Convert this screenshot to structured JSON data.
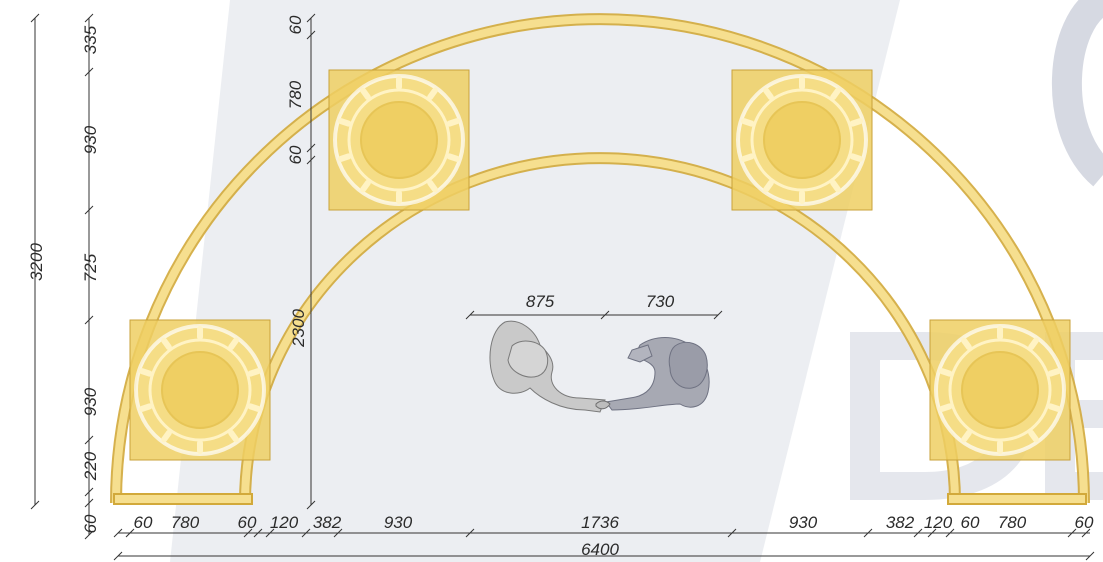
{
  "diagram": {
    "colors": {
      "arch_fill": "#f6df8f",
      "arch_stroke": "#d2a93a",
      "planter_fill": "#efcf63",
      "planter_stroke": "#c9a23a",
      "dim_line": "#333333",
      "watermark": "#8a93ad",
      "figure_light": "#c9c9c9",
      "figure_dark": "#a7a9b3"
    },
    "dimensions": {
      "left_vertical": {
        "total": "3200",
        "segments": [
          "335",
          "930",
          "725",
          "930",
          "220",
          "60"
        ]
      },
      "center_vertical": {
        "segments": [
          "60",
          "780",
          "60"
        ],
        "height": "2300"
      },
      "bottom_row": [
        "60",
        "780",
        "60",
        "120",
        "382",
        "930",
        "1736",
        "930",
        "382",
        "120",
        "60",
        "780",
        "60"
      ],
      "bottom_total": "6400",
      "people": [
        "875",
        "730"
      ]
    },
    "watermark": {
      "letters": "DE"
    }
  }
}
